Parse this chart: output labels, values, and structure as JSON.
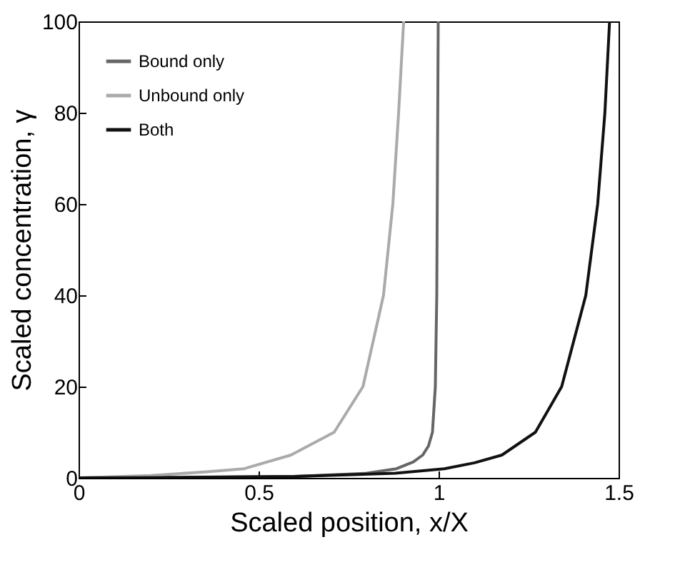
{
  "chart_data": {
    "type": "line",
    "xlabel": "Scaled position, x/X",
    "ylabel": "Scaled concentration, γ",
    "xlim": [
      0,
      1.5
    ],
    "ylim": [
      0,
      100
    ],
    "xticks": [
      0,
      0.5,
      1,
      1.5
    ],
    "yticks": [
      0,
      20,
      40,
      60,
      80,
      100
    ],
    "grid": false,
    "legend": "top left",
    "line_style": "solid",
    "marker": "none",
    "series": [
      {
        "name": "Bound only",
        "color": "#666666",
        "x": [
          0,
          0.2,
          0.4,
          0.6,
          0.8,
          0.883,
          0.93,
          0.956,
          0.972,
          0.983,
          0.991,
          0.995,
          0.999
        ],
        "values": [
          0,
          0.1,
          0.2,
          0.3,
          1,
          2,
          3.5,
          5,
          7,
          10,
          20,
          40,
          100
        ]
      },
      {
        "name": "Unbound only",
        "color": "#aaaaaa",
        "x": [
          0,
          0.2,
          0.35,
          0.46,
          0.59,
          0.71,
          0.79,
          0.847,
          0.873,
          0.889,
          0.903
        ],
        "values": [
          0,
          0.5,
          1.3,
          2,
          5,
          10,
          20,
          40,
          60,
          80,
          100
        ]
      },
      {
        "name": "Both",
        "color": "#111111",
        "x": [
          0,
          0.3,
          0.6,
          0.88,
          1.016,
          1.1,
          1.176,
          1.269,
          1.342,
          1.409,
          1.442,
          1.462,
          1.475
        ],
        "values": [
          0,
          0.1,
          0.3,
          1,
          2,
          3.3,
          5,
          10,
          20,
          40,
          60,
          80,
          100
        ]
      }
    ]
  }
}
